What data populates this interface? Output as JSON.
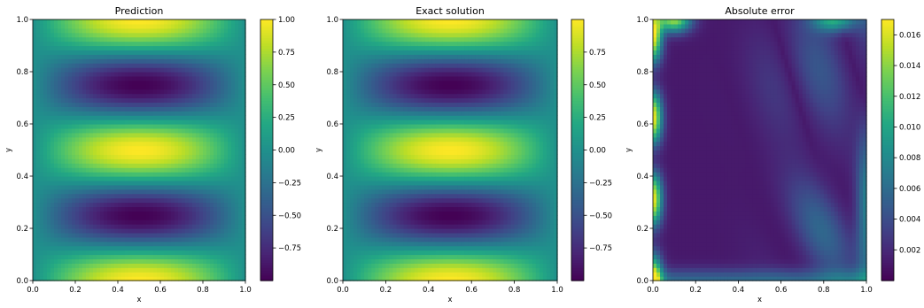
{
  "chart_data": [
    {
      "type": "heatmap",
      "title": "Prediction",
      "xlabel": "x",
      "ylabel": "y",
      "xlim": [
        0.0,
        1.0
      ],
      "ylim": [
        0.0,
        1.0
      ],
      "xticks": [
        0.0,
        0.2,
        0.4,
        0.6,
        0.8,
        1.0
      ],
      "yticks": [
        0.0,
        0.2,
        0.4,
        0.6,
        0.8,
        1.0
      ],
      "xtick_labels": [
        "0.0",
        "0.2",
        "0.4",
        "0.6",
        "0.8",
        "1.0"
      ],
      "ytick_labels": [
        "0.0",
        "0.2",
        "0.4",
        "0.6",
        "0.8",
        "1.0"
      ],
      "field": "sin(pi*x) * cos(4*pi*y)",
      "colormap": "viridis",
      "colorbar": {
        "vmin": -1.0,
        "vmax": 1.0,
        "ticks": [
          -0.75,
          -0.5,
          -0.25,
          0.0,
          0.25,
          0.5,
          0.75,
          1.0
        ],
        "tick_labels": [
          "−0.75",
          "−0.50",
          "−0.25",
          "0.00",
          "0.25",
          "0.50",
          "0.75",
          "1.00"
        ]
      }
    },
    {
      "type": "heatmap",
      "title": "Exact solution",
      "xlabel": "x",
      "ylabel": "y",
      "xlim": [
        0.0,
        1.0
      ],
      "ylim": [
        0.0,
        1.0
      ],
      "xticks": [
        0.0,
        0.2,
        0.4,
        0.6,
        0.8,
        1.0
      ],
      "yticks": [
        0.0,
        0.2,
        0.4,
        0.6,
        0.8,
        1.0
      ],
      "xtick_labels": [
        "0.0",
        "0.2",
        "0.4",
        "0.6",
        "0.8",
        "1.0"
      ],
      "ytick_labels": [
        "0.0",
        "0.2",
        "0.4",
        "0.6",
        "0.8",
        "1.0"
      ],
      "field": "sin(pi*x) * cos(4*pi*y)",
      "colormap": "viridis",
      "colorbar": {
        "vmin": -1.0,
        "vmax": 1.0,
        "ticks": [
          -0.75,
          -0.5,
          -0.25,
          0.0,
          0.25,
          0.5,
          0.75
        ],
        "tick_labels": [
          "−0.75",
          "−0.50",
          "−0.25",
          "0.00",
          "0.25",
          "0.50",
          "0.75"
        ]
      }
    },
    {
      "type": "heatmap",
      "title": "Absolute error",
      "xlabel": "x",
      "ylabel": "y",
      "xlim": [
        0.0,
        1.0
      ],
      "ylim": [
        0.0,
        1.0
      ],
      "xticks": [
        0.0,
        0.2,
        0.4,
        0.6,
        0.8,
        1.0
      ],
      "yticks": [
        0.0,
        0.2,
        0.4,
        0.6,
        0.8,
        1.0
      ],
      "xtick_labels": [
        "0.0",
        "0.2",
        "0.4",
        "0.6",
        "0.8",
        "1.0"
      ],
      "ytick_labels": [
        "0.0",
        "0.2",
        "0.4",
        "0.6",
        "0.8",
        "1.0"
      ],
      "field": "approximate absolute error",
      "colormap": "viridis",
      "colorbar": {
        "vmin": 0.0,
        "vmax": 0.017,
        "ticks": [
          0.002,
          0.004,
          0.006,
          0.008,
          0.01,
          0.012,
          0.014,
          0.016
        ],
        "tick_labels": [
          "0.002",
          "0.004",
          "0.006",
          "0.008",
          "0.010",
          "0.012",
          "0.014",
          "0.016"
        ]
      }
    }
  ]
}
